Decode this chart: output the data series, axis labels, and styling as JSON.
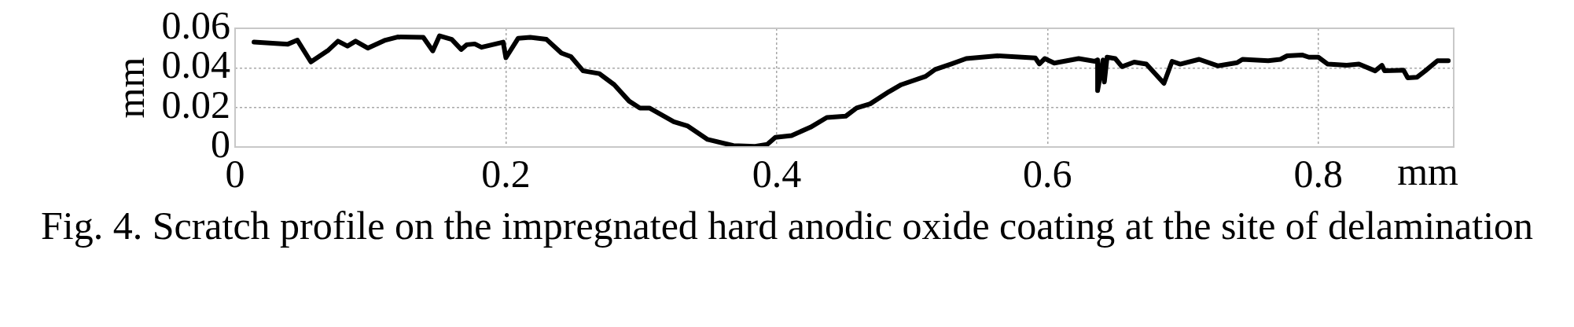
{
  "chart_data": {
    "type": "line",
    "xlabel": "mm",
    "ylabel": "mm",
    "annotations": [
      "Fig. 4. Scratch profile on the impregnated hard anodic oxide coating at the site of delamination"
    ],
    "xlim": [
      0,
      0.9
    ],
    "xticks": [
      0,
      0.2,
      0.4,
      0.6,
      0.8
    ],
    "ylim": [
      0,
      0.06
    ],
    "yticks": [
      0,
      0.02,
      0.04,
      0.06
    ],
    "grid": true,
    "legend": false,
    "marker": "none",
    "line_style": "solid",
    "series": [
      {
        "color": "#000000",
        "x": [
          0.014,
          0.039,
          0.046,
          0.056,
          0.069,
          0.076,
          0.083,
          0.089,
          0.098,
          0.111,
          0.12,
          0.139,
          0.146,
          0.151,
          0.16,
          0.167,
          0.171,
          0.177,
          0.182,
          0.198,
          0.2,
          0.209,
          0.218,
          0.23,
          0.241,
          0.248,
          0.257,
          0.269,
          0.28,
          0.291,
          0.299,
          0.306,
          0.324,
          0.334,
          0.349,
          0.368,
          0.384,
          0.393,
          0.399,
          0.411,
          0.425,
          0.437,
          0.451,
          0.459,
          0.469,
          0.483,
          0.492,
          0.51,
          0.517,
          0.529,
          0.54,
          0.563,
          0.591,
          0.594,
          0.598,
          0.605,
          0.623,
          0.635,
          0.637,
          0.637,
          0.641,
          0.642,
          0.644,
          0.65,
          0.655,
          0.664,
          0.673,
          0.686,
          0.692,
          0.698,
          0.712,
          0.726,
          0.74,
          0.744,
          0.763,
          0.772,
          0.777,
          0.788,
          0.793,
          0.8,
          0.807,
          0.821,
          0.83,
          0.842,
          0.847,
          0.849,
          0.863,
          0.866,
          0.873,
          0.879,
          0.888,
          0.896
        ],
        "values": [
          0.053,
          0.052,
          0.054,
          0.043,
          0.049,
          0.0535,
          0.051,
          0.0535,
          0.05,
          0.054,
          0.0556,
          0.0554,
          0.0486,
          0.0562,
          0.0544,
          0.0493,
          0.0517,
          0.0521,
          0.0504,
          0.053,
          0.0451,
          0.0549,
          0.0554,
          0.0544,
          0.0475,
          0.0457,
          0.0385,
          0.0371,
          0.0315,
          0.0232,
          0.0197,
          0.0197,
          0.0128,
          0.0107,
          0.0038,
          0.0007,
          0.0003,
          0.0013,
          0.0049,
          0.0058,
          0.01,
          0.0149,
          0.0156,
          0.0197,
          0.0218,
          0.028,
          0.0315,
          0.0357,
          0.0392,
          0.042,
          0.0447,
          0.0461,
          0.045,
          0.042,
          0.0447,
          0.0424,
          0.0447,
          0.0433,
          0.044,
          0.0285,
          0.044,
          0.0329,
          0.0454,
          0.0447,
          0.0406,
          0.0429,
          0.0419,
          0.0322,
          0.0433,
          0.0419,
          0.0443,
          0.041,
          0.0426,
          0.0443,
          0.0436,
          0.0443,
          0.0461,
          0.0465,
          0.0454,
          0.0454,
          0.0419,
          0.0413,
          0.0419,
          0.0385,
          0.0413,
          0.0385,
          0.0388,
          0.035,
          0.0353,
          0.0385,
          0.0436,
          0.0436
        ]
      }
    ]
  }
}
